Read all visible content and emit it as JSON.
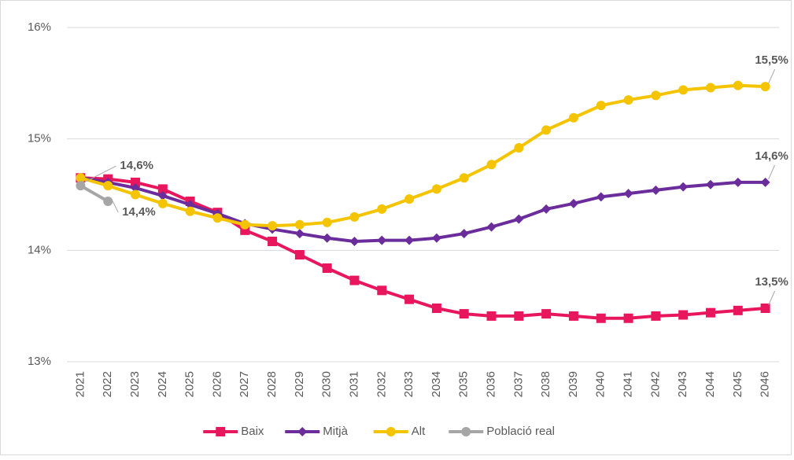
{
  "chart_data": {
    "type": "line",
    "categories": [
      "2021",
      "2022",
      "2023",
      "2024",
      "2025",
      "2026",
      "2027",
      "2028",
      "2029",
      "2030",
      "2031",
      "2032",
      "2033",
      "2034",
      "2035",
      "2036",
      "2037",
      "2038",
      "2039",
      "2040",
      "2041",
      "2042",
      "2043",
      "2044",
      "2045",
      "2046"
    ],
    "ylim": [
      13,
      16
    ],
    "yticks": [
      {
        "value": 13,
        "label": "13%"
      },
      {
        "value": 14,
        "label": "14%"
      },
      {
        "value": 15,
        "label": "15%"
      },
      {
        "value": 16,
        "label": "16%"
      }
    ],
    "grid": true,
    "legend": "bottom",
    "series": [
      {
        "name": "Baix",
        "color": "#e8175d",
        "marker": "square",
        "values": [
          14.65,
          14.64,
          14.61,
          14.55,
          14.44,
          14.34,
          14.18,
          14.08,
          13.96,
          13.84,
          13.73,
          13.64,
          13.56,
          13.48,
          13.43,
          13.41,
          13.41,
          13.43,
          13.41,
          13.39,
          13.39,
          13.41,
          13.42,
          13.44,
          13.46,
          13.48
        ],
        "value_labels": [
          null,
          null,
          null,
          null,
          null,
          null,
          null,
          null,
          null,
          null,
          null,
          null,
          null,
          null,
          null,
          null,
          null,
          null,
          null,
          null,
          null,
          null,
          null,
          null,
          null,
          "13,5%"
        ]
      },
      {
        "name": "Mitjà",
        "color": "#6b2d9b",
        "marker": "diamond",
        "values": [
          14.65,
          14.61,
          14.56,
          14.49,
          14.41,
          14.33,
          14.24,
          14.19,
          14.15,
          14.11,
          14.08,
          14.09,
          14.09,
          14.11,
          14.15,
          14.21,
          14.28,
          14.37,
          14.42,
          14.48,
          14.51,
          14.54,
          14.57,
          14.59,
          14.61,
          14.61
        ],
        "value_labels": [
          null,
          null,
          null,
          null,
          null,
          null,
          null,
          null,
          null,
          null,
          null,
          null,
          null,
          null,
          null,
          null,
          null,
          null,
          null,
          null,
          null,
          null,
          null,
          null,
          null,
          "14,6%"
        ]
      },
      {
        "name": "Alt",
        "color": "#f5c400",
        "marker": "circle",
        "values": [
          14.65,
          14.58,
          14.5,
          14.42,
          14.35,
          14.29,
          14.23,
          14.22,
          14.23,
          14.25,
          14.3,
          14.37,
          14.46,
          14.55,
          14.65,
          14.77,
          14.92,
          15.08,
          15.19,
          15.3,
          15.35,
          15.39,
          15.44,
          15.46,
          15.48,
          15.47
        ],
        "value_labels": [
          null,
          null,
          null,
          null,
          null,
          null,
          null,
          null,
          null,
          null,
          null,
          null,
          null,
          null,
          null,
          null,
          null,
          null,
          null,
          null,
          null,
          null,
          null,
          null,
          null,
          "15,5%"
        ]
      },
      {
        "name": "Població real",
        "color": "#a6a6a6",
        "marker": "circle",
        "values": [
          14.58,
          14.44,
          null,
          null,
          null,
          null,
          null,
          null,
          null,
          null,
          null,
          null,
          null,
          null,
          null,
          null,
          null,
          null,
          null,
          null,
          null,
          null,
          null,
          null,
          null,
          null
        ],
        "value_labels": [
          "14,6%",
          "14,4%",
          null,
          null,
          null,
          null,
          null,
          null,
          null,
          null,
          null,
          null,
          null,
          null,
          null,
          null,
          null,
          null,
          null,
          null,
          null,
          null,
          null,
          null,
          null,
          null
        ]
      }
    ]
  }
}
